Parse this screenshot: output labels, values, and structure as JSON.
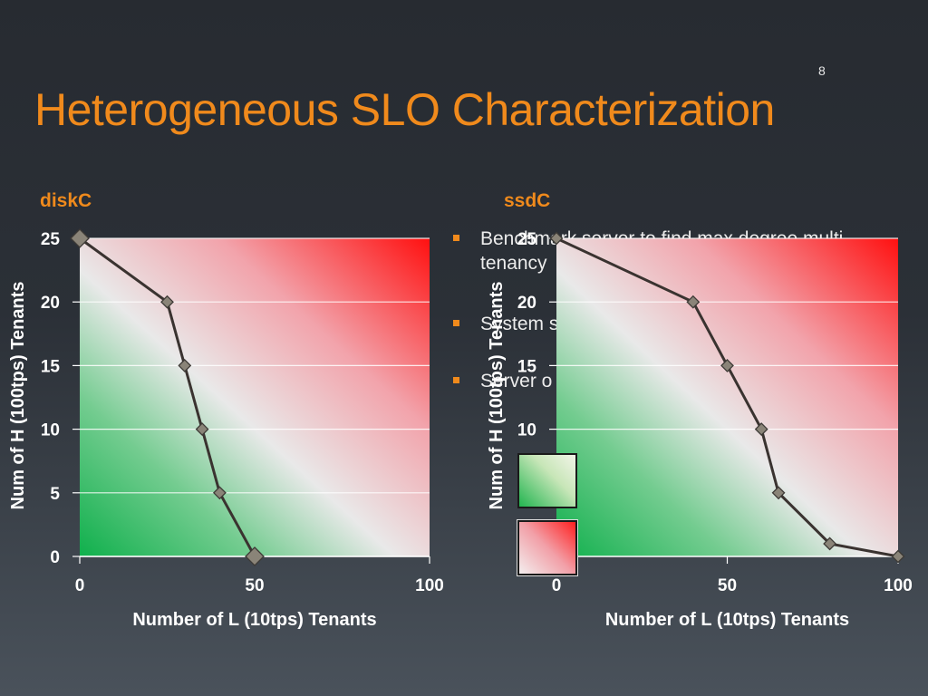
{
  "slide": {
    "page_number": "8",
    "title": "Heterogeneous SLO Characterization"
  },
  "bullets": [
    "Benchmark server to find max degree multi-tenancy",
    "System steadily until a p",
    "Server o"
  ],
  "colors": {
    "title": "#f08a1c",
    "feasible_region": "#22b550",
    "infeasible_region": "#ff2020",
    "curve": "#3a3330",
    "marker": "#8a8478"
  },
  "chart_data": [
    {
      "type": "line",
      "title": "diskC",
      "xlabel": "Number of L (10tps) Tenants",
      "ylabel": "Num of H (100tps) Tenants",
      "xlim": [
        0,
        100
      ],
      "ylim": [
        0,
        25
      ],
      "xticks": [
        0,
        50,
        100
      ],
      "yticks": [
        0,
        5,
        10,
        15,
        20,
        25
      ],
      "grid": true,
      "x": [
        0,
        25,
        30,
        35,
        40,
        50
      ],
      "y": [
        25,
        20,
        15,
        10,
        5,
        0
      ]
    },
    {
      "type": "line",
      "title": "ssdC",
      "xlabel": "Number of L (10tps) Tenants",
      "ylabel": "Num of H (100tps) Tenants",
      "xlim": [
        0,
        100
      ],
      "ylim": [
        0,
        25
      ],
      "xticks": [
        0,
        50,
        100
      ],
      "yticks": [
        10,
        15,
        20,
        25
      ],
      "grid": true,
      "x": [
        0,
        40,
        50,
        60,
        65,
        80,
        100
      ],
      "y": [
        25,
        20,
        15,
        10,
        5,
        1,
        0
      ]
    }
  ]
}
